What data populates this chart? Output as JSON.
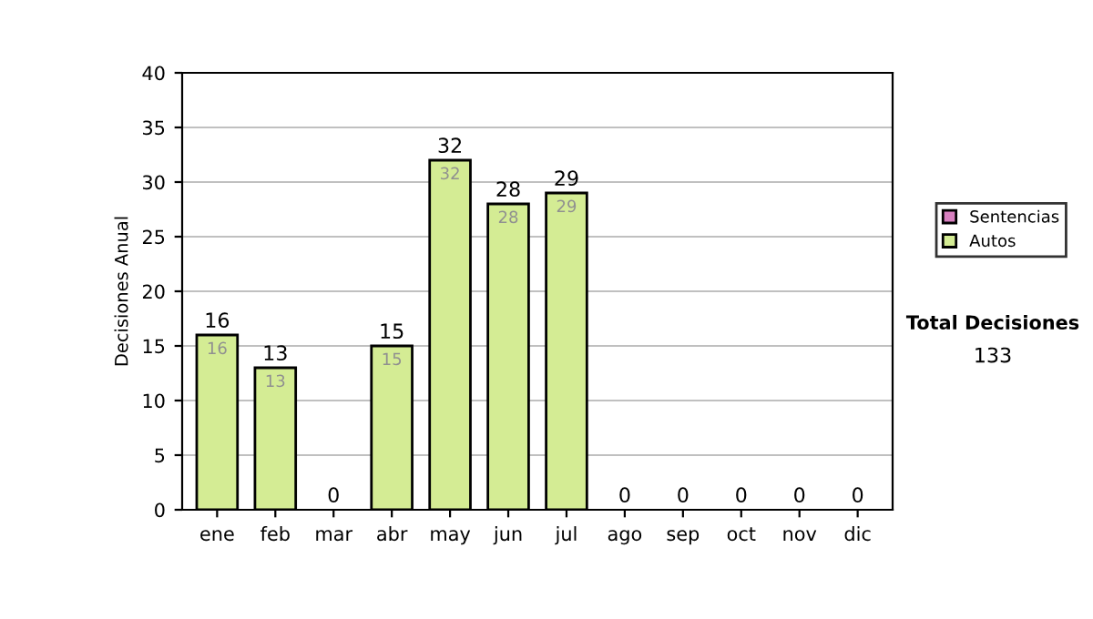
{
  "chart_data": {
    "type": "bar",
    "stacked": true,
    "ylabel": "Decisiones Anual",
    "categories": [
      "ene",
      "feb",
      "mar",
      "abr",
      "may",
      "jun",
      "jul",
      "ago",
      "sep",
      "oct",
      "nov",
      "dic"
    ],
    "series": [
      {
        "name": "Sentencias",
        "color": "#d880c0",
        "values": [
          0,
          0,
          0,
          0,
          0,
          0,
          0,
          0,
          0,
          0,
          0,
          0
        ]
      },
      {
        "name": "Autos",
        "color": "#d4ec94",
        "values": [
          16,
          13,
          0,
          15,
          32,
          28,
          29,
          0,
          0,
          0,
          0,
          0
        ],
        "value_labels": [
          "16",
          "13",
          null,
          "15",
          "32",
          "28",
          "29",
          null,
          null,
          null,
          null,
          null
        ]
      }
    ],
    "totals": [
      "16",
      "13",
      "0",
      "15",
      "32",
      "28",
      "29",
      "0",
      "0",
      "0",
      "0",
      "0"
    ],
    "ylim": [
      0,
      40
    ],
    "yticks": [
      0,
      5,
      10,
      15,
      20,
      25,
      30,
      35,
      40
    ],
    "grid": "y",
    "legend": "right",
    "annotations": [
      "Total Decisiones",
      "133"
    ]
  }
}
